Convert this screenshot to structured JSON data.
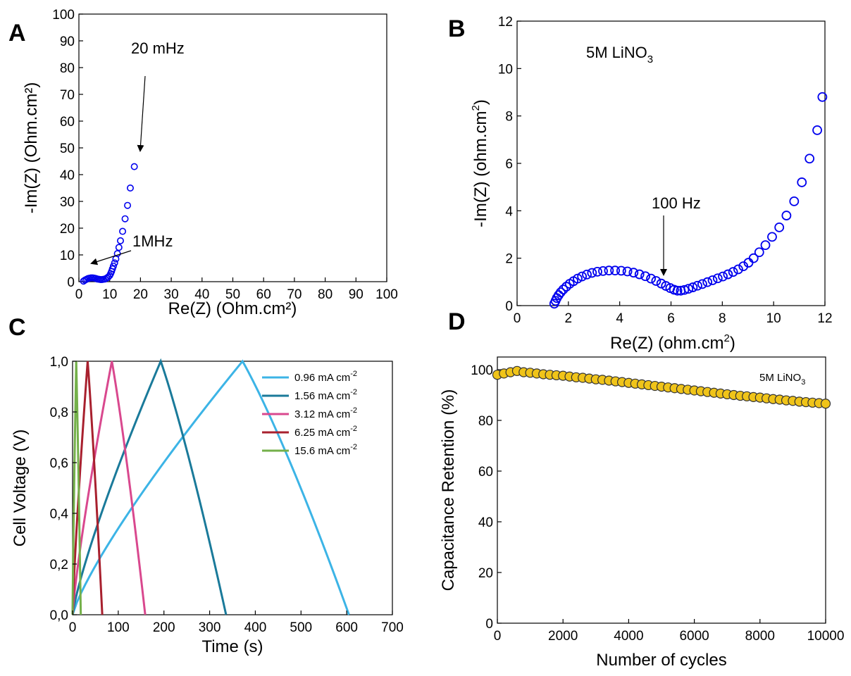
{
  "chart_data": [
    {
      "panel": "A",
      "type": "scatter",
      "xlabel": "Re(Z) (Ohm.cm²)",
      "ylabel": "-Im(Z) (Ohm.cm²)",
      "xlim": [
        0,
        100
      ],
      "ylim": [
        0,
        100
      ],
      "xticks": [
        0,
        10,
        20,
        30,
        40,
        50,
        60,
        70,
        80,
        90,
        100
      ],
      "yticks": [
        0,
        10,
        20,
        30,
        40,
        50,
        60,
        70,
        80,
        90,
        100
      ],
      "annotations": [
        "20 mHz",
        "1MHz"
      ],
      "marker_color": "#0000ee",
      "x": [
        1.5,
        2.0,
        2.5,
        3.0,
        3.5,
        4.0,
        4.5,
        5.0,
        5.5,
        6.0,
        6.5,
        7.0,
        7.5,
        8.0,
        8.5,
        9.0,
        9.5,
        10.0,
        10.3,
        10.6,
        10.9,
        11.2,
        11.6,
        12.0,
        12.5,
        13.0,
        13.5,
        14.2,
        15.0,
        15.8,
        16.7,
        18.0
      ],
      "y": [
        0.2,
        0.6,
        0.9,
        1.2,
        1.3,
        1.4,
        1.4,
        1.3,
        1.2,
        1.0,
        0.9,
        0.8,
        0.8,
        0.9,
        1.0,
        1.3,
        1.7,
        2.3,
        3.0,
        3.8,
        4.8,
        5.8,
        7.0,
        8.5,
        10.5,
        12.8,
        15.3,
        18.8,
        23.5,
        28.5,
        35.0,
        43.0
      ]
    },
    {
      "panel": "B",
      "type": "scatter",
      "xlabel": "Re(Z) (ohm.cm",
      "xlabel_sup": "2",
      "xlabel_end": ")",
      "ylabel": "-Im(Z) (ohm.cm",
      "ylabel_sup": "2",
      "ylabel_end": ")",
      "title": "5M LiNO",
      "title_sub": "3",
      "xlim": [
        0,
        12
      ],
      "ylim": [
        0,
        12
      ],
      "xticks": [
        0,
        2,
        4,
        6,
        8,
        10,
        12
      ],
      "yticks": [
        0,
        2,
        4,
        6,
        8,
        10,
        12
      ],
      "annotations": [
        "100 Hz"
      ],
      "marker_color": "#0000ee",
      "x": [
        1.45,
        1.5,
        1.55,
        1.62,
        1.7,
        1.8,
        1.92,
        2.05,
        2.2,
        2.36,
        2.53,
        2.72,
        2.92,
        3.13,
        3.35,
        3.58,
        3.82,
        4.06,
        4.3,
        4.54,
        4.77,
        5.0,
        5.22,
        5.42,
        5.62,
        5.8,
        5.97,
        6.12,
        6.25,
        6.38,
        6.52,
        6.68,
        6.85,
        7.03,
        7.22,
        7.42,
        7.62,
        7.82,
        8.02,
        8.22,
        8.42,
        8.62,
        8.82,
        9.02,
        9.22,
        9.44,
        9.68,
        9.94,
        10.22,
        10.5,
        10.8,
        11.1,
        11.4,
        11.7,
        11.9
      ],
      "y": [
        0.08,
        0.2,
        0.32,
        0.44,
        0.56,
        0.68,
        0.8,
        0.92,
        1.03,
        1.14,
        1.23,
        1.31,
        1.38,
        1.43,
        1.46,
        1.48,
        1.48,
        1.47,
        1.44,
        1.39,
        1.32,
        1.24,
        1.14,
        1.04,
        0.93,
        0.83,
        0.74,
        0.67,
        0.63,
        0.63,
        0.66,
        0.71,
        0.77,
        0.84,
        0.91,
        0.99,
        1.07,
        1.15,
        1.23,
        1.32,
        1.42,
        1.53,
        1.66,
        1.81,
        2.0,
        2.25,
        2.55,
        2.9,
        3.3,
        3.8,
        4.4,
        5.2,
        6.2,
        7.4,
        8.8
      ]
    },
    {
      "panel": "C",
      "type": "line",
      "xlabel": "Time (s)",
      "ylabel": "Cell Voltage (V)",
      "xlim": [
        0,
        700
      ],
      "ylim": [
        0,
        1
      ],
      "xticks": [
        0,
        100,
        200,
        300,
        400,
        500,
        600,
        700
      ],
      "yticks": [
        "0,0",
        "0,2",
        "0,4",
        "0,6",
        "0,8",
        "1,0"
      ],
      "legend_position": "top-right",
      "series": [
        {
          "name": "0.96 mA cm",
          "sup": "-2",
          "color": "#3cb4e6",
          "charge_end": 372,
          "discharge_end": 605
        },
        {
          "name": "1.56 mA cm",
          "sup": "-2",
          "color": "#1a7a9a",
          "charge_end": 193,
          "discharge_end": 336
        },
        {
          "name": "3.12 mA cm",
          "sup": "-2",
          "color": "#d9488e",
          "charge_end": 86,
          "discharge_end": 159
        },
        {
          "name": "6.25 mA cm",
          "sup": "-2",
          "color": "#a8202e",
          "charge_end": 33,
          "discharge_end": 65
        },
        {
          "name": "15.6 mA cm",
          "sup": "-2",
          "color": "#74b04a",
          "charge_end": 8,
          "discharge_end": 18
        }
      ]
    },
    {
      "panel": "D",
      "type": "scatter",
      "xlabel": "Number of cycles",
      "ylabel": "Capacitance Retention (%)",
      "xlim": [
        0,
        10000
      ],
      "ylim": [
        0,
        105
      ],
      "xticks": [
        0,
        2000,
        4000,
        6000,
        8000,
        10000
      ],
      "yticks": [
        0,
        20,
        40,
        60,
        80,
        100
      ],
      "legend": "5M LiNO",
      "legend_sub": "3",
      "marker_color": "#f0c419",
      "x": [
        0,
        200,
        400,
        600,
        800,
        1000,
        1200,
        1400,
        1600,
        1800,
        2000,
        2200,
        2400,
        2600,
        2800,
        3000,
        3200,
        3400,
        3600,
        3800,
        4000,
        4200,
        4400,
        4600,
        4800,
        5000,
        5200,
        5400,
        5600,
        5800,
        6000,
        6200,
        6400,
        6600,
        6800,
        7000,
        7200,
        7400,
        7600,
        7800,
        8000,
        8200,
        8400,
        8600,
        8800,
        9000,
        9200,
        9400,
        9600,
        9800,
        10000
      ],
      "y": [
        98,
        98.5,
        99,
        99.5,
        99,
        98.8,
        98.5,
        98.2,
        98,
        97.8,
        97.6,
        97.3,
        97,
        96.8,
        96.5,
        96.2,
        96,
        95.7,
        95.4,
        95.1,
        94.8,
        94.5,
        94.2,
        93.9,
        93.6,
        93.3,
        93,
        92.7,
        92.4,
        92.1,
        91.8,
        91.5,
        91.2,
        90.9,
        90.6,
        90.3,
        90,
        89.7,
        89.5,
        89.2,
        89,
        88.7,
        88.4,
        88.2,
        87.9,
        87.7,
        87.4,
        87.2,
        87,
        86.8,
        86.6
      ]
    }
  ],
  "panel_letters": [
    "A",
    "B",
    "C",
    "D"
  ]
}
